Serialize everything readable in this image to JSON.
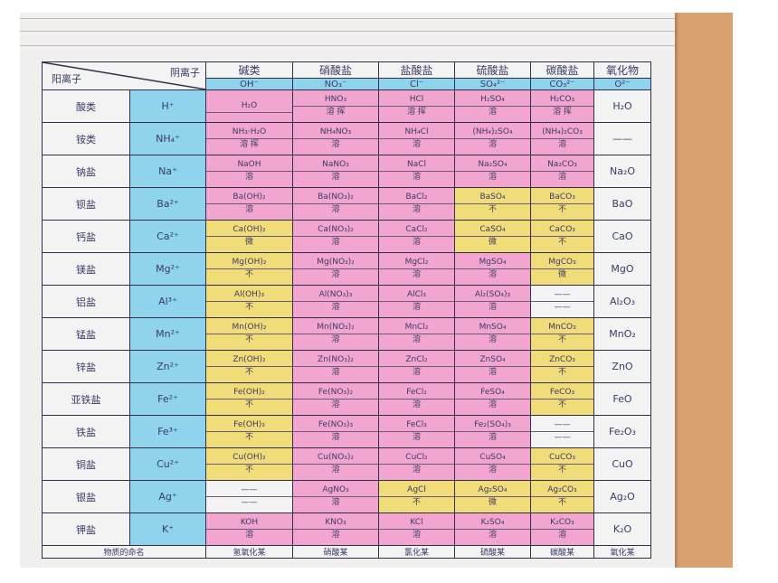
{
  "corner": {
    "anion_label": "阴离子",
    "cation_label": "阳离子"
  },
  "columns": [
    {
      "name": "碱类",
      "ion": "OH⁻"
    },
    {
      "name": "硝酸盐",
      "ion": "NO₃⁻"
    },
    {
      "name": "盐酸盐",
      "ion": "Cl⁻"
    },
    {
      "name": "硫酸盐",
      "ion": "SO₄²⁻"
    },
    {
      "name": "碳酸盐",
      "ion": "CO₃²⁻"
    },
    {
      "name": "氧化物",
      "ion": "O²⁻"
    }
  ],
  "rows": [
    {
      "cls": "酸类",
      "cation": "H⁺",
      "oxide": "H₂O",
      "cells": [
        {
          "f": "H₂O",
          "s": "",
          "c": "pink"
        },
        {
          "f": "HNO₃",
          "s": "溶 挥",
          "c": "pink"
        },
        {
          "f": "HCl",
          "s": "溶 挥",
          "c": "pink"
        },
        {
          "f": "H₂SO₄",
          "s": "溶",
          "c": "pink"
        },
        {
          "f": "H₂CO₃",
          "s": "溶 挥",
          "c": "pink"
        }
      ]
    },
    {
      "cls": "铵类",
      "cation": "NH₄⁺",
      "oxide": "——",
      "cells": [
        {
          "f": "NH₃·H₂O",
          "s": "溶 挥",
          "c": "pink"
        },
        {
          "f": "NH₄NO₃",
          "s": "溶",
          "c": "pink"
        },
        {
          "f": "NH₄Cl",
          "s": "溶",
          "c": "pink"
        },
        {
          "f": "(NH₄)₂SO₄",
          "s": "溶",
          "c": "pink"
        },
        {
          "f": "(NH₄)₂CO₃",
          "s": "溶",
          "c": "pink"
        }
      ]
    },
    {
      "cls": "钠盐",
      "cation": "Na⁺",
      "oxide": "Na₂O",
      "cells": [
        {
          "f": "NaOH",
          "s": "溶",
          "c": "pink"
        },
        {
          "f": "NaNO₃",
          "s": "溶",
          "c": "pink"
        },
        {
          "f": "NaCl",
          "s": "溶",
          "c": "pink"
        },
        {
          "f": "Na₂SO₄",
          "s": "溶",
          "c": "pink"
        },
        {
          "f": "Na₂CO₃",
          "s": "溶",
          "c": "pink"
        }
      ]
    },
    {
      "cls": "钡盐",
      "cation": "Ba²⁺",
      "oxide": "BaO",
      "cells": [
        {
          "f": "Ba(OH)₂",
          "s": "溶",
          "c": "pink"
        },
        {
          "f": "Ba(NO₃)₂",
          "s": "溶",
          "c": "pink"
        },
        {
          "f": "BaCl₂",
          "s": "溶",
          "c": "pink"
        },
        {
          "f": "BaSO₄",
          "s": "不",
          "c": "yellow"
        },
        {
          "f": "BaCO₃",
          "s": "不",
          "c": "yellow"
        }
      ]
    },
    {
      "cls": "钙盐",
      "cation": "Ca²⁺",
      "oxide": "CaO",
      "cells": [
        {
          "f": "Ca(OH)₂",
          "s": "微",
          "c": "yellow"
        },
        {
          "f": "Ca(NO₃)₂",
          "s": "溶",
          "c": "pink"
        },
        {
          "f": "CaCl₂",
          "s": "溶",
          "c": "pink"
        },
        {
          "f": "CaSO₄",
          "s": "微",
          "c": "yellow"
        },
        {
          "f": "CaCO₃",
          "s": "不",
          "c": "yellow"
        }
      ]
    },
    {
      "cls": "镁盐",
      "cation": "Mg²⁺",
      "oxide": "MgO",
      "cells": [
        {
          "f": "Mg(OH)₂",
          "s": "不",
          "c": "yellow"
        },
        {
          "f": "Mg(NO₃)₂",
          "s": "溶",
          "c": "pink"
        },
        {
          "f": "MgCl₂",
          "s": "溶",
          "c": "pink"
        },
        {
          "f": "MgSO₄",
          "s": "溶",
          "c": "pink"
        },
        {
          "f": "MgCO₃",
          "s": "微",
          "c": "yellow"
        }
      ]
    },
    {
      "cls": "铝盐",
      "cation": "Al³⁺",
      "oxide": "Al₂O₃",
      "cells": [
        {
          "f": "Al(OH)₃",
          "s": "不",
          "c": "yellow"
        },
        {
          "f": "Al(NO₃)₃",
          "s": "溶",
          "c": "pink"
        },
        {
          "f": "AlCl₃",
          "s": "溶",
          "c": "pink"
        },
        {
          "f": "Al₂(SO₄)₃",
          "s": "溶",
          "c": "pink"
        },
        {
          "f": "——",
          "s": "——",
          "c": "plain"
        }
      ]
    },
    {
      "cls": "锰盐",
      "cation": "Mn²⁺",
      "oxide": "MnO₂",
      "cells": [
        {
          "f": "Mn(OH)₂",
          "s": "不",
          "c": "yellow"
        },
        {
          "f": "Mn(NO₃)₂",
          "s": "溶",
          "c": "pink"
        },
        {
          "f": "MnCl₂",
          "s": "溶",
          "c": "pink"
        },
        {
          "f": "MnSO₄",
          "s": "溶",
          "c": "pink"
        },
        {
          "f": "MnCO₃",
          "s": "不",
          "c": "yellow"
        }
      ]
    },
    {
      "cls": "锌盐",
      "cation": "Zn²⁺",
      "oxide": "ZnO",
      "cells": [
        {
          "f": "Zn(OH)₂",
          "s": "不",
          "c": "yellow"
        },
        {
          "f": "Zn(NO₃)₂",
          "s": "溶",
          "c": "pink"
        },
        {
          "f": "ZnCl₂",
          "s": "溶",
          "c": "pink"
        },
        {
          "f": "ZnSO₄",
          "s": "溶",
          "c": "pink"
        },
        {
          "f": "ZnCO₃",
          "s": "不",
          "c": "yellow"
        }
      ]
    },
    {
      "cls": "亚铁盐",
      "cation": "Fe²⁺",
      "oxide": "FeO",
      "cells": [
        {
          "f": "Fe(OH)₂",
          "s": "不",
          "c": "yellow"
        },
        {
          "f": "Fe(NO₃)₂",
          "s": "溶",
          "c": "pink"
        },
        {
          "f": "FeCl₂",
          "s": "溶",
          "c": "pink"
        },
        {
          "f": "FeSO₄",
          "s": "溶",
          "c": "pink"
        },
        {
          "f": "FeCO₃",
          "s": "不",
          "c": "yellow"
        }
      ]
    },
    {
      "cls": "铁盐",
      "cation": "Fe³⁺",
      "oxide": "Fe₂O₃",
      "cells": [
        {
          "f": "Fe(OH)₃",
          "s": "不",
          "c": "yellow"
        },
        {
          "f": "Fe(NO₃)₃",
          "s": "溶",
          "c": "pink"
        },
        {
          "f": "FeCl₃",
          "s": "溶",
          "c": "pink"
        },
        {
          "f": "Fe₂(SO₄)₃",
          "s": "溶",
          "c": "pink"
        },
        {
          "f": "——",
          "s": "——",
          "c": "plain"
        }
      ]
    },
    {
      "cls": "铜盐",
      "cation": "Cu²⁺",
      "oxide": "CuO",
      "cells": [
        {
          "f": "Cu(OH)₂",
          "s": "不",
          "c": "yellow"
        },
        {
          "f": "Cu(NO₃)₂",
          "s": "溶",
          "c": "pink"
        },
        {
          "f": "CuCl₂",
          "s": "溶",
          "c": "pink"
        },
        {
          "f": "CuSO₄",
          "s": "溶",
          "c": "pink"
        },
        {
          "f": "CuCO₃",
          "s": "不",
          "c": "yellow"
        }
      ]
    },
    {
      "cls": "银盐",
      "cation": "Ag⁺",
      "oxide": "Ag₂O",
      "cells": [
        {
          "f": "——",
          "s": "——",
          "c": "plain"
        },
        {
          "f": "AgNO₃",
          "s": "溶",
          "c": "pink"
        },
        {
          "f": "AgCl",
          "s": "不",
          "c": "yellow"
        },
        {
          "f": "Ag₂SO₄",
          "s": "微",
          "c": "yellow"
        },
        {
          "f": "Ag₂CO₃",
          "s": "不",
          "c": "yellow"
        }
      ]
    },
    {
      "cls": "钾盐",
      "cation": "K⁺",
      "oxide": "K₂O",
      "cells": [
        {
          "f": "KOH",
          "s": "溶",
          "c": "pink"
        },
        {
          "f": "KNO₃",
          "s": "溶",
          "c": "pink"
        },
        {
          "f": "KCl",
          "s": "溶",
          "c": "pink"
        },
        {
          "f": "K₂SO₄",
          "s": "溶",
          "c": "pink"
        },
        {
          "f": "K₂CO₃",
          "s": "溶",
          "c": "pink"
        }
      ]
    }
  ],
  "footer": {
    "label": "物质的命名",
    "names": [
      "氢氧化某",
      "硝酸某",
      "氯化某",
      "硫酸某",
      "碳酸某",
      "氧化某"
    ]
  }
}
